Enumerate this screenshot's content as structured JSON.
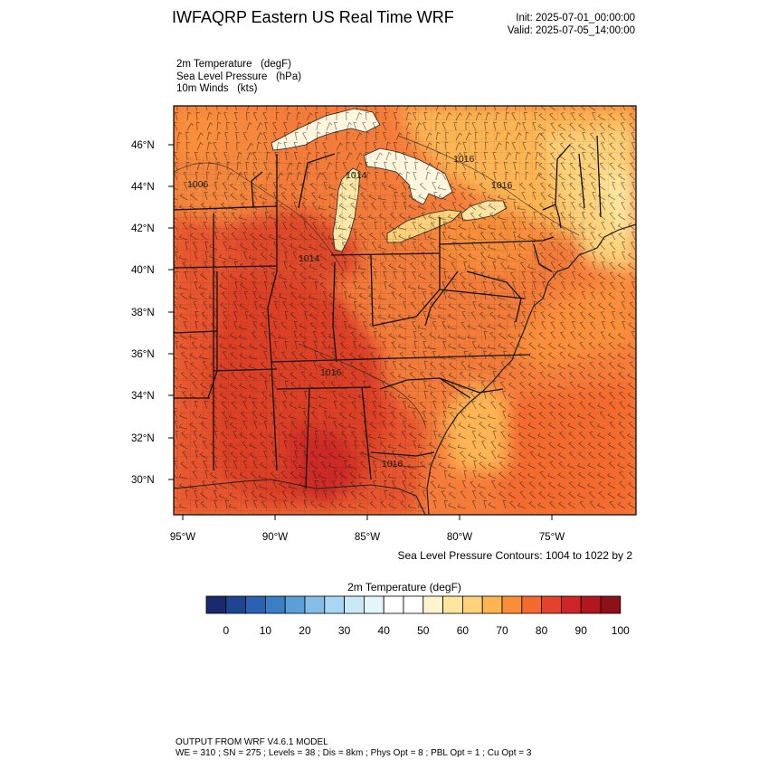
{
  "header": {
    "title": "IWFAQRP Eastern US Real Time WRF",
    "init": "Init: 2025-07-01_00:00:00",
    "valid": "Valid: 2025-07-05_14:00:00"
  },
  "fields": [
    "2m Temperature   (degF)",
    "Sea Level Pressure   (hPa)",
    "10m Winds   (kts)"
  ],
  "map": {
    "lat_ticks": [
      "46°N",
      "44°N",
      "42°N",
      "40°N",
      "38°N",
      "36°N",
      "34°N",
      "32°N",
      "30°N"
    ],
    "lon_ticks": [
      "95°W",
      "90°W",
      "85°W",
      "80°W",
      "75°W"
    ],
    "pressure_labels": [
      "1006",
      "1014",
      "1016",
      "1014",
      "1016",
      "1016",
      "1016"
    ],
    "contour_note": "Sea Level Pressure Contours: 1004 to 1022 by 2"
  },
  "colorbar": {
    "title": "2m Temperature  (degF)",
    "colors": [
      "#1a2a6c",
      "#1f4591",
      "#2b62b0",
      "#3a7fc6",
      "#5b9fd8",
      "#86bde6",
      "#a9d6f2",
      "#cbe8f7",
      "#e6f4fb",
      "#ffffff",
      "#ffffff",
      "#fff4d2",
      "#fee69e",
      "#fdd27a",
      "#fdb552",
      "#f98e3a",
      "#f36a2e",
      "#e3432a",
      "#cf2427",
      "#b3171e",
      "#8e1118"
    ],
    "labels": [
      "0",
      "10",
      "20",
      "30",
      "40",
      "50",
      "60",
      "70",
      "80",
      "90",
      "100"
    ]
  },
  "footer": {
    "line1": "OUTPUT FROM WRF V4.6.1 MODEL",
    "line2": "WE = 310 ; SN = 275 ; Levels = 38 ; Dis = 8km ; Phys Opt = 8 ; PBL Opt = 1 ; Cu Opt = 3"
  }
}
